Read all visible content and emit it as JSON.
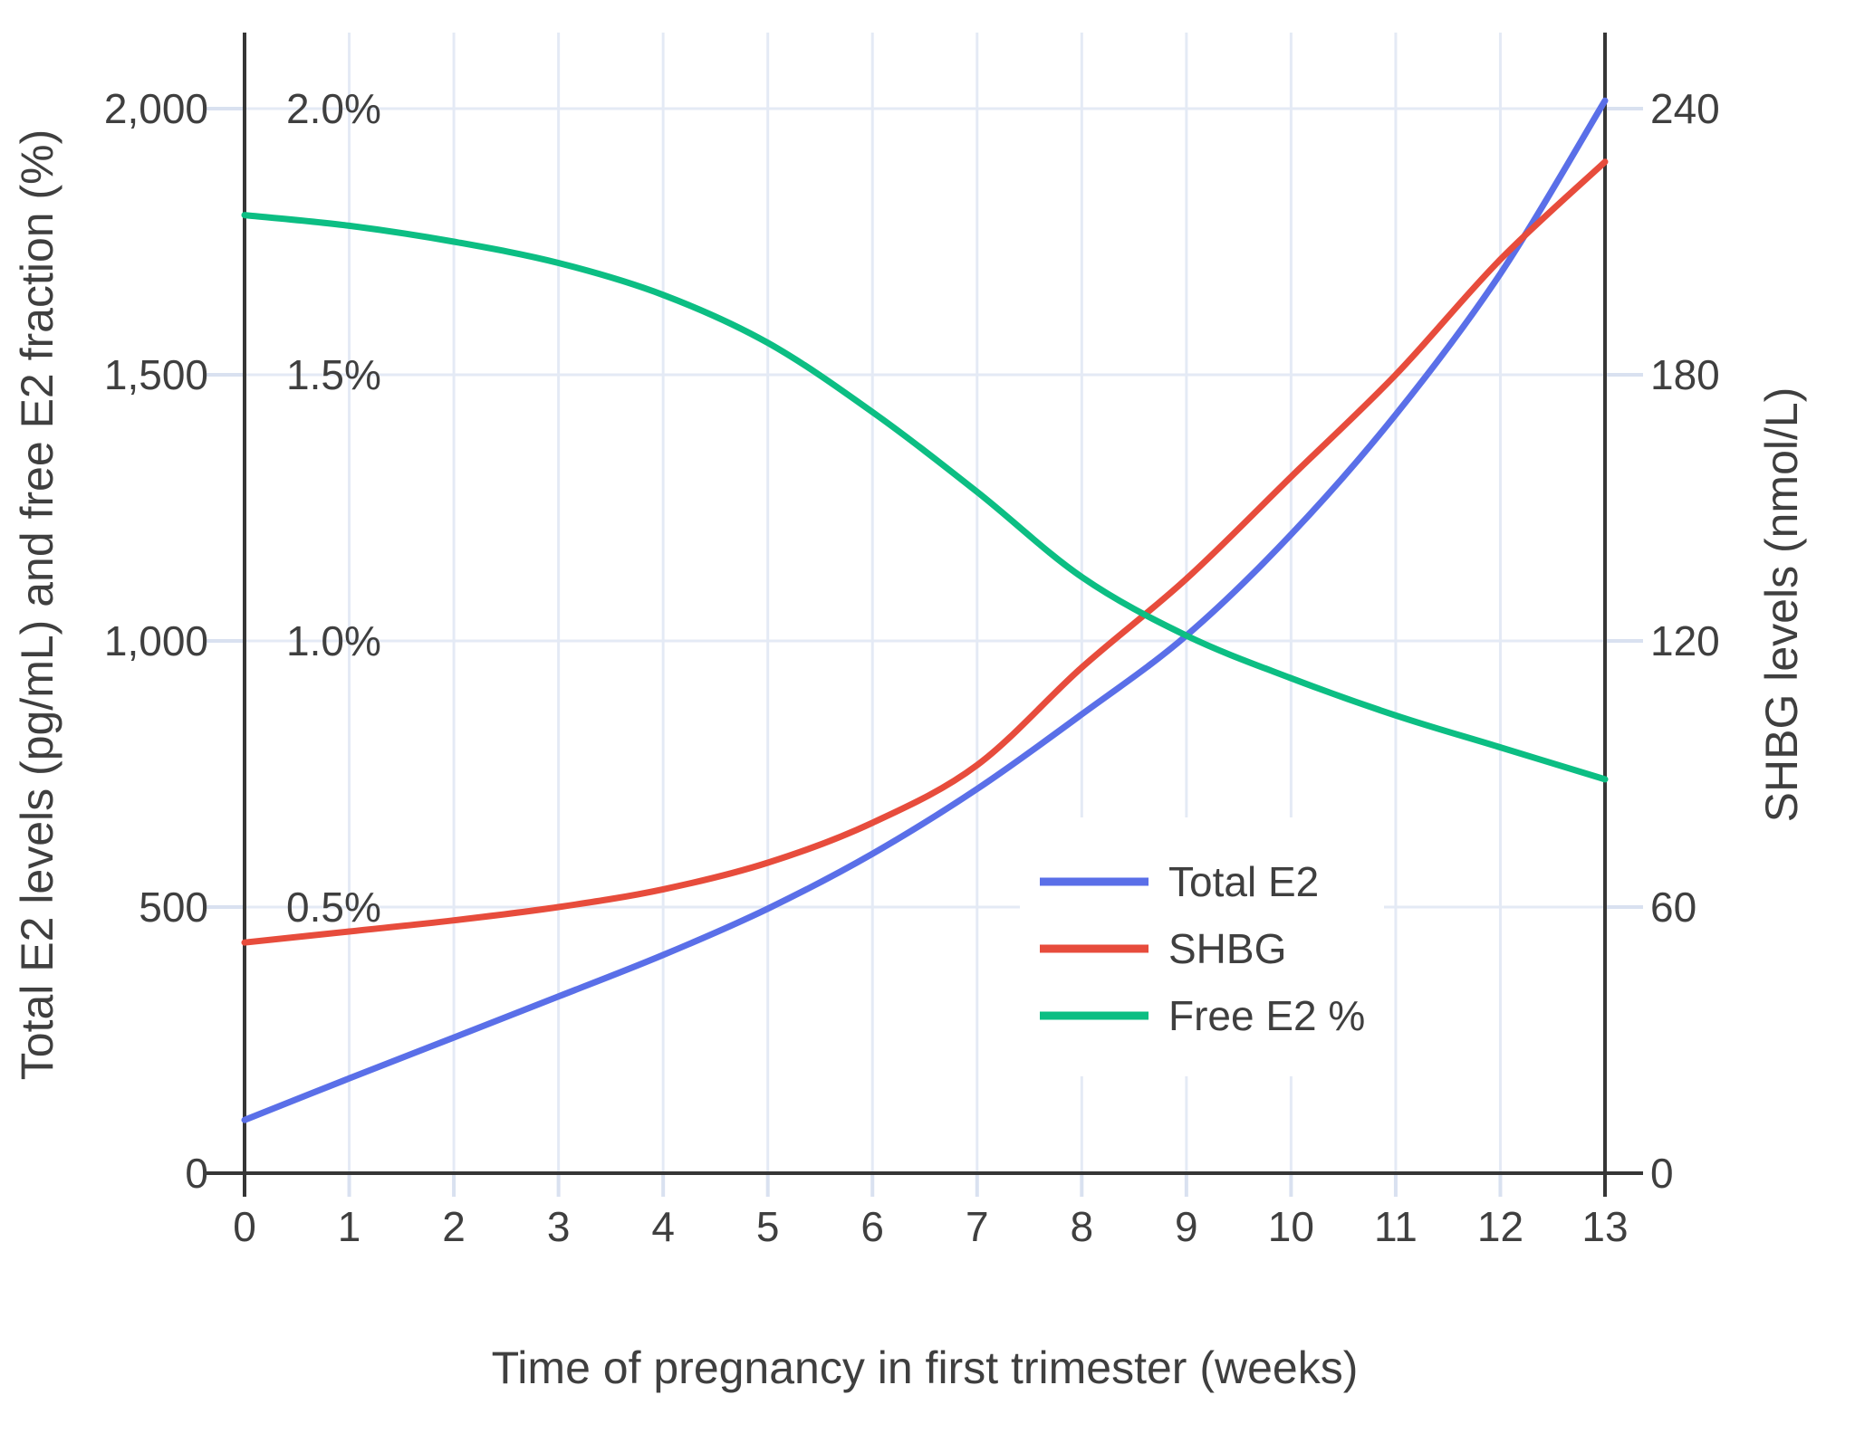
{
  "chart_data": {
    "type": "line",
    "x": [
      0,
      1,
      2,
      3,
      4,
      5,
      6,
      7,
      8,
      9,
      10,
      11,
      12,
      13
    ],
    "x_axis": {
      "title": "Time of pregnancy in first trimester (weeks)",
      "range": [
        0,
        13
      ],
      "tick_labels": [
        "0",
        "1",
        "2",
        "3",
        "4",
        "5",
        "6",
        "7",
        "8",
        "9",
        "10",
        "11",
        "12",
        "13"
      ],
      "tick_values": [
        0,
        1,
        2,
        3,
        4,
        5,
        6,
        7,
        8,
        9,
        10,
        11,
        12,
        13
      ]
    },
    "left_axis": {
      "title": "Total E2 levels (pg/mL) and free E2 fraction (%)",
      "range": [
        0,
        2000
      ],
      "tick_labels": [
        "0",
        "500",
        "1,000",
        "1,500",
        "2,000"
      ],
      "tick_values": [
        0,
        500,
        1000,
        1500,
        2000
      ]
    },
    "pct_axis": {
      "note": "free E2 fraction labels drawn inside plot, share left axis scale (1% = 1000)",
      "tick_labels": [
        "0.5%",
        "1.0%",
        "1.5%",
        "2.0%"
      ],
      "tick_values": [
        0.5,
        1.0,
        1.5,
        2.0
      ]
    },
    "right_axis": {
      "title": "SHBG levels (nmol/L)",
      "range": [
        0,
        240
      ],
      "tick_labels": [
        "0",
        "60",
        "120",
        "180",
        "240"
      ],
      "tick_values": [
        0,
        60,
        120,
        180,
        240
      ]
    },
    "grid": true,
    "legend_position": "inside lower right",
    "series": [
      {
        "name": "Total E2",
        "axis": "left",
        "units": "pg/mL",
        "color": "#5A6FE8",
        "values": [
          100,
          178,
          255,
          332,
          410,
          497,
          600,
          722,
          862,
          1010,
          1200,
          1425,
          1690,
          2015
        ]
      },
      {
        "name": "SHBG",
        "axis": "right",
        "units": "nmol/L",
        "color": "#E74C3C",
        "values": [
          52,
          54.5,
          57,
          60,
          64,
          70,
          79,
          92,
          114,
          134,
          157,
          180,
          206,
          228
        ]
      },
      {
        "name": "Free E2 %",
        "axis": "pct",
        "units": "%",
        "color": "#0CBE83",
        "values": [
          1.8,
          1.78,
          1.75,
          1.71,
          1.65,
          1.56,
          1.43,
          1.28,
          1.12,
          1.01,
          0.93,
          0.86,
          0.8,
          0.74
        ]
      }
    ],
    "colors": {
      "grid": "#E4EAF5",
      "outer_tick": "#D9E1F0",
      "axis_line": "#363636",
      "text": "#3F3F3F",
      "background": "#FFFFFF"
    }
  }
}
